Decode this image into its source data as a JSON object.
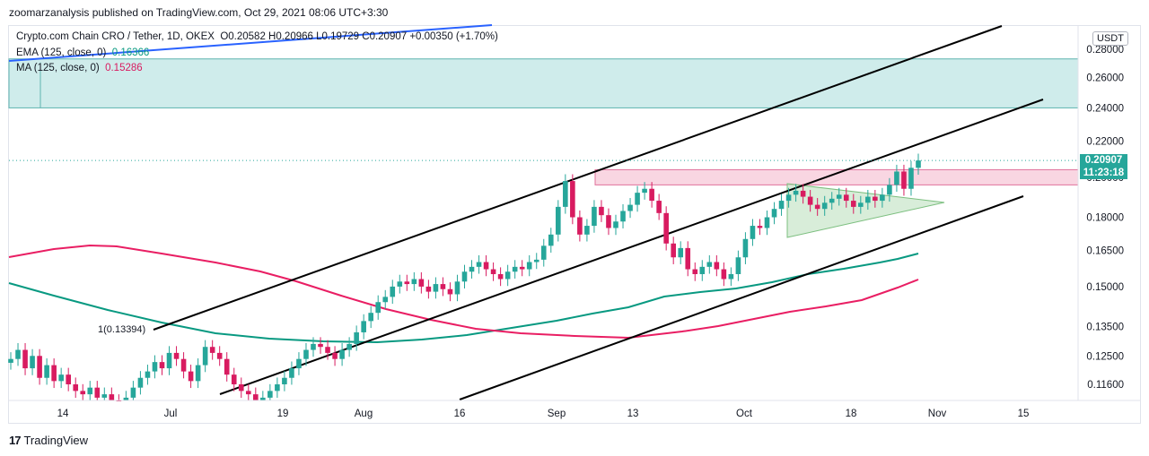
{
  "header": {
    "published": "zoomarzanalysis published on TradingView.com, Oct 29, 2021 08:06 UTC+3:30"
  },
  "legend": {
    "symbol": "Crypto.com Chain CRO / Tether, 1D, OKEX",
    "ohlc": "O0.20582  H0.20966  L0.19729  C0.20907  +0.00350 (+1.70%)",
    "ema_label": "EMA (125, close, 0)",
    "ema_value": "0.16366",
    "ma_label": "MA (125, close, 0)",
    "ma_value": "0.15286"
  },
  "currency_button": "USDT",
  "last_price": {
    "value": "0.20907",
    "countdown": "11:23:18"
  },
  "fib_label": "1(0.13394)",
  "colors": {
    "up": "#26a69a",
    "down": "#d81b60",
    "ema": "#089981",
    "ma": "#e91e63",
    "zone_teal": "#cfeceb",
    "zone_pink": "#f9d6e2",
    "triangle": "#c8e6c9"
  },
  "footer": {
    "brand": "TradingView",
    "logo_icon": "tradingview-logo-icon"
  },
  "chart_data": {
    "type": "candlestick",
    "price_axis": {
      "scale": "log",
      "ticks": [
        "0.28000",
        "0.26000",
        "0.24000",
        "0.22000",
        "0.20000",
        "0.18000",
        "0.16500",
        "0.15000",
        "0.13500",
        "0.12500",
        "0.11600"
      ],
      "tick_values": [
        0.28,
        0.26,
        0.24,
        0.22,
        0.2,
        0.18,
        0.165,
        0.15,
        0.135,
        0.125,
        0.116
      ]
    },
    "time_axis": {
      "ticks": [
        "14",
        "Jul",
        "19",
        "Aug",
        "16",
        "Sep",
        "13",
        "Oct",
        "18",
        "Nov",
        "15"
      ]
    },
    "zones": [
      {
        "name": "teal-resistance-zone",
        "from": 0.24,
        "to": 0.273
      },
      {
        "name": "pink-zone",
        "from": 0.196,
        "to": 0.204
      }
    ],
    "closes": [
      0.124,
      0.127,
      0.121,
      0.125,
      0.118,
      0.122,
      0.117,
      0.119,
      0.116,
      0.114,
      0.113,
      0.115,
      0.112,
      0.113,
      0.111,
      0.11,
      0.112,
      0.115,
      0.118,
      0.12,
      0.123,
      0.121,
      0.126,
      0.124,
      0.12,
      0.117,
      0.122,
      0.128,
      0.126,
      0.124,
      0.119,
      0.116,
      0.114,
      0.113,
      0.111,
      0.112,
      0.114,
      0.116,
      0.118,
      0.121,
      0.124,
      0.127,
      0.129,
      0.128,
      0.126,
      0.124,
      0.127,
      0.129,
      0.133,
      0.137,
      0.14,
      0.144,
      0.146,
      0.15,
      0.152,
      0.151,
      0.153,
      0.15,
      0.148,
      0.151,
      0.149,
      0.147,
      0.152,
      0.156,
      0.158,
      0.16,
      0.157,
      0.155,
      0.153,
      0.156,
      0.158,
      0.157,
      0.16,
      0.161,
      0.167,
      0.172,
      0.185,
      0.198,
      0.18,
      0.172,
      0.176,
      0.185,
      0.181,
      0.175,
      0.178,
      0.183,
      0.186,
      0.192,
      0.194,
      0.188,
      0.182,
      0.168,
      0.162,
      0.166,
      0.157,
      0.155,
      0.158,
      0.16,
      0.157,
      0.153,
      0.155,
      0.162,
      0.17,
      0.176,
      0.175,
      0.18,
      0.184,
      0.188,
      0.191,
      0.193,
      0.19,
      0.186,
      0.184,
      0.187,
      0.189,
      0.191,
      0.188,
      0.185,
      0.187,
      0.19,
      0.188,
      0.191,
      0.196,
      0.203,
      0.194,
      0.205,
      0.209
    ]
  }
}
